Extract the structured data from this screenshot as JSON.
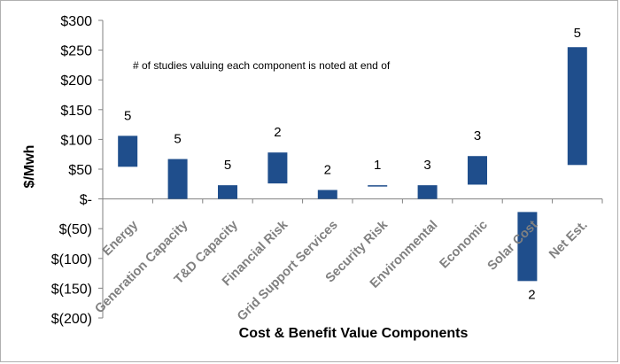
{
  "chart_data": {
    "type": "bar",
    "subtype": "floating-waterfall",
    "xlabel": "Cost & Benefit Value Components",
    "ylabel": "$/Mwh",
    "note": "# of studies valuing each component is noted at end of",
    "ylim": [
      -200,
      300
    ],
    "y_ticks": [
      {
        "value": 300,
        "label": "$300"
      },
      {
        "value": 250,
        "label": "$250"
      },
      {
        "value": 200,
        "label": "$200"
      },
      {
        "value": 150,
        "label": "$150"
      },
      {
        "value": 100,
        "label": "$100"
      },
      {
        "value": 50,
        "label": "$50"
      },
      {
        "value": 0,
        "label": "$-"
      },
      {
        "value": -50,
        "label": "$(50)"
      },
      {
        "value": -100,
        "label": "$(100)"
      },
      {
        "value": -150,
        "label": "$(150)"
      },
      {
        "value": -200,
        "label": "$(200)"
      }
    ],
    "categories": [
      "Energy",
      "Generation  Capacity",
      "T&D Capacity",
      "Financial Risk",
      "Grid Support Services",
      "Security Risk",
      "Environmental",
      "Economic",
      "Solar Cost",
      "Net Est."
    ],
    "ranges": [
      {
        "low": 54,
        "high": 106
      },
      {
        "low": 0,
        "high": 67
      },
      {
        "low": 0,
        "high": 23
      },
      {
        "low": 26,
        "high": 78
      },
      {
        "low": 0,
        "high": 15
      },
      {
        "low": 22,
        "high": 23
      },
      {
        "low": 0,
        "high": 23
      },
      {
        "low": 24,
        "high": 72
      },
      {
        "low": -138,
        "high": -22
      },
      {
        "low": 57,
        "high": 255
      }
    ],
    "study_counts": [
      "5",
      "5",
      "5",
      "2",
      "2",
      "1",
      "3",
      "3",
      "2",
      "5"
    ],
    "bar_color": "#1f4e8c",
    "grid": false,
    "legend": "none"
  }
}
